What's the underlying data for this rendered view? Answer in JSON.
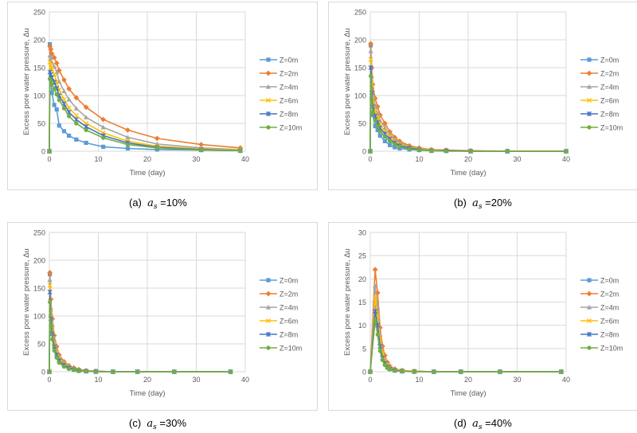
{
  "figure_captions": [
    {
      "label": "(a)",
      "symbol": "a",
      "subscript": "s",
      "value": "=10%"
    },
    {
      "label": "(b)",
      "symbol": "a",
      "subscript": "s",
      "value": "=20%"
    },
    {
      "label": "(c)",
      "symbol": "a",
      "subscript": "s",
      "value": "=30%"
    },
    {
      "label": "(d)",
      "symbol": "a",
      "subscript": "s",
      "value": "=40%"
    }
  ],
  "series_styles": [
    {
      "name": "Z=0m",
      "color": "#5b9bd5",
      "marker": "square"
    },
    {
      "name": "Z=2m",
      "color": "#ed7d31",
      "marker": "diamond"
    },
    {
      "name": "Z=4m",
      "color": "#a5a5a5",
      "marker": "triangle"
    },
    {
      "name": "Z=6m",
      "color": "#ffc000",
      "marker": "x"
    },
    {
      "name": "Z=8m",
      "color": "#4472c4",
      "marker": "star"
    },
    {
      "name": "Z=10m",
      "color": "#70ad47",
      "marker": "circle"
    }
  ],
  "chart_data": [
    {
      "type": "line",
      "title": "",
      "xlabel": "Time (day)",
      "ylabel": "Excess pore water pressure, Δu",
      "xlim": [
        0,
        40
      ],
      "ylim": [
        0,
        250
      ],
      "xticks": [
        0,
        10,
        20,
        30,
        40
      ],
      "yticks": [
        0,
        50,
        100,
        150,
        200,
        250
      ],
      "legend": "right",
      "series": [
        {
          "name": "Z=0m",
          "x": [
            0,
            0.1,
            0.3,
            0.5,
            1,
            1.5,
            2,
            3,
            4,
            5.5,
            7.5,
            11,
            16,
            22,
            31,
            39
          ],
          "y": [
            0,
            192,
            130,
            105,
            83,
            75,
            46,
            36,
            28,
            21,
            15,
            8,
            5,
            3,
            2,
            1
          ]
        },
        {
          "name": "Z=2m",
          "x": [
            0,
            0.1,
            0.3,
            0.5,
            1,
            1.5,
            2,
            3,
            4,
            5.5,
            7.5,
            11,
            16,
            22,
            31,
            39
          ],
          "y": [
            0,
            188,
            183,
            175,
            168,
            158,
            145,
            128,
            112,
            96,
            79,
            57,
            38,
            23,
            12,
            6
          ]
        },
        {
          "name": "Z=4m",
          "x": [
            0,
            0.1,
            0.3,
            0.5,
            1,
            1.5,
            2,
            3,
            4,
            5.5,
            7.5,
            11,
            16,
            22,
            31,
            39
          ],
          "y": [
            0,
            172,
            168,
            160,
            152,
            142,
            125,
            108,
            93,
            77,
            61,
            43,
            25,
            13,
            6,
            3
          ]
        },
        {
          "name": "Z=6m",
          "x": [
            0,
            0.1,
            0.3,
            0.5,
            1,
            1.5,
            2,
            3,
            4,
            5.5,
            7.5,
            11,
            16,
            22,
            31,
            39
          ],
          "y": [
            0,
            160,
            155,
            148,
            138,
            125,
            110,
            93,
            78,
            64,
            50,
            33,
            18,
            9,
            4,
            2
          ]
        },
        {
          "name": "Z=8m",
          "x": [
            0,
            0.1,
            0.3,
            0.5,
            1,
            1.5,
            2,
            3,
            4,
            5.5,
            7.5,
            11,
            16,
            22,
            31,
            39
          ],
          "y": [
            0,
            142,
            138,
            132,
            124,
            113,
            100,
            85,
            70,
            57,
            44,
            28,
            15,
            7,
            3,
            1
          ]
        },
        {
          "name": "Z=10m",
          "x": [
            0,
            0.1,
            0.3,
            0.5,
            1,
            1.5,
            2,
            3,
            4,
            5.5,
            7.5,
            11,
            16,
            22,
            31,
            39
          ],
          "y": [
            0,
            130,
            126,
            120,
            112,
            102,
            92,
            77,
            63,
            50,
            38,
            24,
            12,
            6,
            2,
            1
          ]
        }
      ]
    },
    {
      "type": "line",
      "title": "",
      "xlabel": "Time (day)",
      "ylabel": "Excess pore water pressure, Δu",
      "xlim": [
        0,
        40
      ],
      "ylim": [
        0,
        250
      ],
      "xticks": [
        0,
        10,
        20,
        30,
        40
      ],
      "yticks": [
        0,
        50,
        100,
        150,
        200,
        250
      ],
      "legend": "right",
      "series": [
        {
          "name": "Z=0m",
          "x": [
            0,
            0.1,
            0.3,
            0.5,
            1,
            1.5,
            2,
            3,
            4,
            5,
            6,
            8,
            10,
            12.5,
            15.5,
            20.5,
            28,
            40
          ],
          "y": [
            0,
            190,
            95,
            65,
            45,
            38,
            28,
            18,
            11,
            7,
            5,
            3,
            2,
            1,
            1,
            0,
            0,
            0
          ]
        },
        {
          "name": "Z=2m",
          "x": [
            0,
            0.1,
            0.3,
            0.5,
            1,
            1.5,
            2,
            3,
            4,
            5,
            6,
            8,
            10,
            12.5,
            15.5,
            20.5,
            28,
            40
          ],
          "y": [
            0,
            193,
            150,
            120,
            95,
            80,
            65,
            50,
            35,
            25,
            18,
            10,
            6,
            3,
            2,
            1,
            0,
            0
          ]
        },
        {
          "name": "Z=4m",
          "x": [
            0,
            0.1,
            0.3,
            0.5,
            1,
            1.5,
            2,
            3,
            4,
            5,
            6,
            8,
            10,
            12.5,
            15.5,
            20.5,
            28,
            40
          ],
          "y": [
            0,
            180,
            135,
            105,
            82,
            68,
            55,
            42,
            30,
            21,
            15,
            8,
            5,
            2,
            1,
            0,
            0,
            0
          ]
        },
        {
          "name": "Z=6m",
          "x": [
            0,
            0.1,
            0.3,
            0.5,
            1,
            1.5,
            2,
            3,
            4,
            5,
            6,
            8,
            10,
            12.5,
            15.5,
            20.5,
            28,
            40
          ],
          "y": [
            0,
            165,
            120,
            92,
            72,
            60,
            48,
            36,
            26,
            18,
            12,
            7,
            4,
            2,
            1,
            0,
            0,
            0
          ]
        },
        {
          "name": "Z=8m",
          "x": [
            0,
            0.1,
            0.3,
            0.5,
            1,
            1.5,
            2,
            3,
            4,
            5,
            6,
            8,
            10,
            12.5,
            15.5,
            20.5,
            28,
            40
          ],
          "y": [
            0,
            150,
            105,
            80,
            63,
            52,
            42,
            31,
            22,
            15,
            10,
            6,
            3,
            1,
            1,
            0,
            0,
            0
          ]
        },
        {
          "name": "Z=10m",
          "x": [
            0,
            0.1,
            0.3,
            0.5,
            1,
            1.5,
            2,
            3,
            4,
            5,
            6,
            8,
            10,
            12.5,
            15.5,
            20.5,
            28,
            40
          ],
          "y": [
            0,
            135,
            92,
            70,
            55,
            45,
            36,
            26,
            18,
            12,
            8,
            4,
            2,
            1,
            0,
            0,
            0,
            0
          ]
        }
      ]
    },
    {
      "type": "line",
      "title": "",
      "xlabel": "Time (day)",
      "ylabel": "Excess pore water pressure, Δu",
      "xlim": [
        0,
        40
      ],
      "ylim": [
        0,
        250
      ],
      "xticks": [
        0,
        10,
        20,
        30,
        40
      ],
      "yticks": [
        0,
        50,
        100,
        150,
        200,
        250
      ],
      "legend": "right",
      "series": [
        {
          "name": "Z=0m",
          "x": [
            0,
            0.1,
            0.3,
            0.6,
            1,
            1.5,
            2,
            3,
            4,
            5,
            6,
            7.5,
            9.5,
            13,
            18,
            25.5,
            37
          ],
          "y": [
            0,
            175,
            100,
            70,
            45,
            30,
            20,
            12,
            7,
            4,
            3,
            1,
            1,
            0,
            0,
            0,
            0
          ]
        },
        {
          "name": "Z=2m",
          "x": [
            0,
            0.1,
            0.3,
            0.6,
            1,
            1.5,
            2,
            3,
            4,
            5,
            6,
            7.5,
            9.5,
            13,
            18,
            25.5,
            37
          ],
          "y": [
            0,
            178,
            130,
            95,
            65,
            45,
            30,
            18,
            11,
            7,
            4,
            2,
            1,
            0,
            0,
            0,
            0
          ]
        },
        {
          "name": "Z=4m",
          "x": [
            0,
            0.1,
            0.3,
            0.6,
            1,
            1.5,
            2,
            3,
            4,
            5,
            6,
            7.5,
            9.5,
            13,
            18,
            25.5,
            37
          ],
          "y": [
            0,
            165,
            115,
            85,
            58,
            40,
            27,
            16,
            10,
            6,
            3,
            2,
            1,
            0,
            0,
            0,
            0
          ]
        },
        {
          "name": "Z=6m",
          "x": [
            0,
            0.1,
            0.3,
            0.6,
            1,
            1.5,
            2,
            3,
            4,
            5,
            6,
            7.5,
            9.5,
            13,
            18,
            25.5,
            37
          ],
          "y": [
            0,
            155,
            105,
            75,
            50,
            35,
            23,
            14,
            8,
            5,
            3,
            1,
            0,
            0,
            0,
            0,
            0
          ]
        },
        {
          "name": "Z=8m",
          "x": [
            0,
            0.1,
            0.3,
            0.6,
            1,
            1.5,
            2,
            3,
            4,
            5,
            6,
            7.5,
            9.5,
            13,
            18,
            25.5,
            37
          ],
          "y": [
            0,
            143,
            95,
            68,
            45,
            30,
            20,
            12,
            7,
            4,
            2,
            1,
            0,
            0,
            0,
            0,
            0
          ]
        },
        {
          "name": "Z=10m",
          "x": [
            0,
            0.1,
            0.3,
            0.6,
            1,
            1.5,
            2,
            3,
            4,
            5,
            6,
            7.5,
            9.5,
            13,
            18,
            25.5,
            37
          ],
          "y": [
            0,
            125,
            82,
            58,
            38,
            25,
            16,
            9,
            5,
            3,
            1,
            1,
            0,
            0,
            0,
            0,
            0
          ]
        }
      ]
    },
    {
      "type": "line",
      "title": "",
      "xlabel": "Time (day)",
      "ylabel": "Excess pore water pressure, Δu",
      "xlim": [
        0,
        40
      ],
      "ylim": [
        0,
        30
      ],
      "xticks": [
        0,
        10,
        20,
        30,
        40
      ],
      "yticks": [
        0,
        5,
        10,
        15,
        20,
        25,
        30
      ],
      "legend": "right",
      "series": [
        {
          "name": "Z=0m",
          "x": [
            0,
            1,
            1.5,
            2,
            2.5,
            3,
            3.5,
            4,
            5,
            6.5,
            9,
            13,
            18.5,
            26.5,
            39
          ],
          "y": [
            0,
            14,
            11,
            6,
            3.5,
            2,
            1.2,
            0.8,
            0.4,
            0.2,
            0.1,
            0,
            0,
            0,
            0
          ]
        },
        {
          "name": "Z=2m",
          "x": [
            0,
            1,
            1.5,
            2,
            2.5,
            3,
            3.5,
            4,
            5,
            6.5,
            9,
            13,
            18.5,
            26.5,
            39
          ],
          "y": [
            0,
            22,
            17,
            9.5,
            5.5,
            3.5,
            2,
            1.2,
            0.6,
            0.3,
            0.1,
            0,
            0,
            0,
            0
          ]
        },
        {
          "name": "Z=4m",
          "x": [
            0,
            1,
            1.5,
            2,
            2.5,
            3,
            3.5,
            4,
            5,
            6.5,
            9,
            13,
            18.5,
            26.5,
            39
          ],
          "y": [
            0,
            18.5,
            14,
            8,
            4.5,
            2.8,
            1.6,
            1,
            0.5,
            0.2,
            0.1,
            0,
            0,
            0,
            0
          ]
        },
        {
          "name": "Z=6m",
          "x": [
            0,
            1,
            1.5,
            2,
            2.5,
            3,
            3.5,
            4,
            5,
            6.5,
            9,
            13,
            18.5,
            26.5,
            39
          ],
          "y": [
            0,
            16,
            12,
            7,
            4,
            2.3,
            1.3,
            0.8,
            0.4,
            0.2,
            0.1,
            0,
            0,
            0,
            0
          ]
        },
        {
          "name": "Z=8m",
          "x": [
            0,
            1,
            1.5,
            2,
            2.5,
            3,
            3.5,
            4,
            5,
            6.5,
            9,
            13,
            18.5,
            26.5,
            39
          ],
          "y": [
            0,
            13,
            10,
            5.5,
            3,
            1.8,
            1,
            0.6,
            0.3,
            0.1,
            0,
            0,
            0,
            0,
            0
          ]
        },
        {
          "name": "Z=10m",
          "x": [
            0,
            1,
            1.5,
            2,
            2.5,
            3,
            3.5,
            4,
            5,
            6.5,
            9,
            13,
            18.5,
            26.5,
            39
          ],
          "y": [
            0,
            11,
            8,
            4.5,
            2.5,
            1.4,
            0.8,
            0.5,
            0.2,
            0.1,
            0,
            0,
            0,
            0,
            0
          ]
        }
      ]
    }
  ]
}
